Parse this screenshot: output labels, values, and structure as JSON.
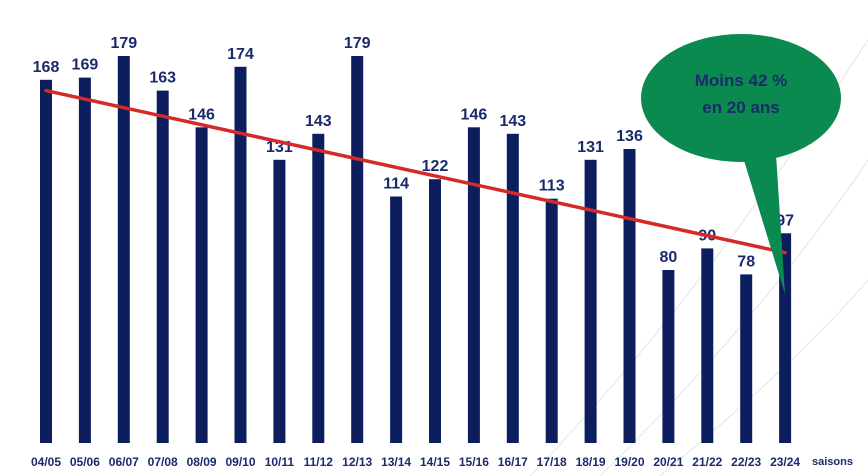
{
  "chart_data": {
    "type": "bar",
    "categories": [
      "04/05",
      "05/06",
      "06/07",
      "07/08",
      "08/09",
      "09/10",
      "10/11",
      "11/12",
      "12/13",
      "13/14",
      "14/15",
      "15/16",
      "16/17",
      "17/18",
      "18/19",
      "19/20",
      "20/21",
      "21/22",
      "22/23",
      "23/24"
    ],
    "values": [
      168,
      169,
      179,
      163,
      146,
      174,
      131,
      143,
      179,
      114,
      122,
      146,
      143,
      113,
      131,
      136,
      80,
      90,
      78,
      97
    ],
    "xlabel": "saisons",
    "ylabel": "",
    "ylim": [
      0,
      190
    ],
    "grid": false,
    "legend": "none",
    "trendline": {
      "start": 163,
      "end": 88,
      "color": "#d42a2a"
    },
    "annotation": {
      "lines": [
        "Moins 42 %",
        "en 20 ans"
      ],
      "color": "#0a8a4f"
    },
    "colors": {
      "bar": "#0d1e5e",
      "label": "#1a2a6c"
    }
  }
}
